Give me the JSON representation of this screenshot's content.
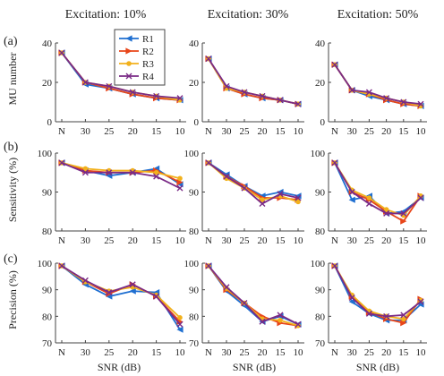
{
  "colors": {
    "R1": "#1f6fd1",
    "R2": "#e8461a",
    "R3": "#f2b11c",
    "R4": "#7a2a86"
  },
  "markers": {
    "R1": "triangle-left",
    "R2": "triangle-right",
    "R3": "circle",
    "R4": "x"
  },
  "column_titles": [
    "Excitation: 10%",
    "Excitation: 30%",
    "Excitation: 50%"
  ],
  "row_labels": [
    "(a)",
    "(b)",
    "(c)"
  ],
  "y_labels": [
    "MU number",
    "Sensitivity (%)",
    "Precision (%)"
  ],
  "x_label": "SNR (dB)",
  "legend": [
    "R1",
    "R2",
    "R3",
    "R4"
  ],
  "chart_data": [
    {
      "type": "line",
      "row": 0,
      "col": 0,
      "title": "Excitation: 10%",
      "xlabel": "",
      "ylabel": "MU number",
      "categories": [
        "N",
        "30",
        "25",
        "20",
        "15",
        "10"
      ],
      "ylim": [
        0,
        40
      ],
      "yticks": [
        0,
        20,
        40
      ],
      "series": [
        {
          "name": "R1",
          "values": [
            35,
            19,
            17,
            14,
            12,
            11
          ]
        },
        {
          "name": "R2",
          "values": [
            35,
            20,
            17,
            14,
            12,
            11
          ]
        },
        {
          "name": "R3",
          "values": [
            35,
            20,
            18,
            15,
            13,
            11
          ]
        },
        {
          "name": "R4",
          "values": [
            35,
            20,
            18,
            15,
            13,
            12
          ]
        }
      ]
    },
    {
      "type": "line",
      "row": 0,
      "col": 1,
      "title": "Excitation: 30%",
      "xlabel": "",
      "ylabel": "",
      "categories": [
        "N",
        "30",
        "25",
        "20",
        "15",
        "10"
      ],
      "ylim": [
        0,
        40
      ],
      "yticks": [
        0,
        20,
        40
      ],
      "series": [
        {
          "name": "R1",
          "values": [
            32,
            17,
            14,
            12,
            11,
            9
          ]
        },
        {
          "name": "R2",
          "values": [
            32,
            17,
            14,
            12,
            11,
            9
          ]
        },
        {
          "name": "R3",
          "values": [
            32,
            17,
            15,
            13,
            11,
            9
          ]
        },
        {
          "name": "R4",
          "values": [
            32,
            18,
            15,
            13,
            11,
            9
          ]
        }
      ]
    },
    {
      "type": "line",
      "row": 0,
      "col": 2,
      "title": "Excitation: 50%",
      "xlabel": "",
      "ylabel": "",
      "categories": [
        "N",
        "30",
        "25",
        "20",
        "15",
        "10"
      ],
      "ylim": [
        0,
        40
      ],
      "yticks": [
        0,
        20,
        40
      ],
      "series": [
        {
          "name": "R1",
          "values": [
            29,
            16,
            13,
            11,
            9,
            8
          ]
        },
        {
          "name": "R2",
          "values": [
            29,
            16,
            14,
            11,
            9,
            8
          ]
        },
        {
          "name": "R3",
          "values": [
            29,
            16,
            14,
            12,
            10,
            8
          ]
        },
        {
          "name": "R4",
          "values": [
            29,
            16,
            15,
            12,
            10,
            9
          ]
        }
      ]
    },
    {
      "type": "line",
      "row": 1,
      "col": 0,
      "title": "",
      "xlabel": "",
      "ylabel": "Sensitivity (%)",
      "categories": [
        "N",
        "30",
        "25",
        "20",
        "15",
        "10"
      ],
      "ylim": [
        80,
        100
      ],
      "yticks": [
        80,
        90,
        100
      ],
      "series": [
        {
          "name": "R1",
          "values": [
            97.5,
            95.5,
            94.2,
            95.0,
            96.0,
            92.0
          ]
        },
        {
          "name": "R2",
          "values": [
            97.5,
            95.5,
            95.0,
            95.0,
            95.5,
            92.5
          ]
        },
        {
          "name": "R3",
          "values": [
            97.5,
            96.0,
            95.5,
            95.5,
            95.0,
            93.5
          ]
        },
        {
          "name": "R4",
          "values": [
            97.5,
            95.0,
            95.0,
            95.0,
            94.0,
            91.0
          ]
        }
      ]
    },
    {
      "type": "line",
      "row": 1,
      "col": 1,
      "title": "",
      "xlabel": "",
      "ylabel": "",
      "categories": [
        "N",
        "30",
        "25",
        "20",
        "15",
        "10"
      ],
      "ylim": [
        80,
        100
      ],
      "yticks": [
        80,
        90,
        100
      ],
      "series": [
        {
          "name": "R1",
          "values": [
            97.5,
            94.5,
            91.5,
            89.0,
            90.0,
            89.0
          ]
        },
        {
          "name": "R2",
          "values": [
            97.5,
            94.0,
            91.5,
            88.5,
            88.5,
            88.0
          ]
        },
        {
          "name": "R3",
          "values": [
            97.5,
            93.5,
            91.0,
            88.0,
            89.0,
            87.5
          ]
        },
        {
          "name": "R4",
          "values": [
            97.5,
            94.0,
            91.0,
            87.0,
            89.5,
            88.5
          ]
        }
      ]
    },
    {
      "type": "line",
      "row": 1,
      "col": 2,
      "title": "",
      "xlabel": "",
      "ylabel": "",
      "categories": [
        "N",
        "30",
        "25",
        "20",
        "15",
        "10"
      ],
      "ylim": [
        80,
        100
      ],
      "yticks": [
        80,
        90,
        100
      ],
      "series": [
        {
          "name": "R1",
          "values": [
            97.5,
            88.0,
            89.0,
            84.5,
            85.0,
            88.5
          ]
        },
        {
          "name": "R2",
          "values": [
            97.5,
            90.0,
            88.0,
            85.0,
            82.5,
            89.0
          ]
        },
        {
          "name": "R3",
          "values": [
            97.5,
            90.5,
            88.5,
            85.5,
            84.0,
            89.0
          ]
        },
        {
          "name": "R4",
          "values": [
            97.5,
            90.0,
            87.0,
            84.5,
            84.5,
            88.5
          ]
        }
      ]
    },
    {
      "type": "line",
      "row": 2,
      "col": 0,
      "title": "",
      "xlabel": "SNR (dB)",
      "ylabel": "Precision (%)",
      "categories": [
        "N",
        "30",
        "25",
        "20",
        "15",
        "10"
      ],
      "ylim": [
        70,
        100
      ],
      "yticks": [
        70,
        80,
        90,
        100
      ],
      "series": [
        {
          "name": "R1",
          "values": [
            99,
            92,
            87.5,
            89.5,
            89,
            75
          ]
        },
        {
          "name": "R2",
          "values": [
            99,
            93,
            88.5,
            92,
            87.5,
            78
          ]
        },
        {
          "name": "R3",
          "values": [
            99,
            93,
            89.5,
            91,
            88,
            79.5
          ]
        },
        {
          "name": "R4",
          "values": [
            99,
            93.5,
            89,
            92,
            87.5,
            77
          ]
        }
      ]
    },
    {
      "type": "line",
      "row": 2,
      "col": 1,
      "title": "",
      "xlabel": "SNR (dB)",
      "ylabel": "",
      "categories": [
        "N",
        "30",
        "25",
        "20",
        "15",
        "10"
      ],
      "ylim": [
        70,
        100
      ],
      "yticks": [
        70,
        80,
        90,
        100
      ],
      "series": [
        {
          "name": "R1",
          "values": [
            99,
            89.5,
            84,
            78,
            80,
            77
          ]
        },
        {
          "name": "R2",
          "values": [
            99,
            90,
            85,
            80,
            77.5,
            76.5
          ]
        },
        {
          "name": "R3",
          "values": [
            99,
            90.5,
            85,
            79,
            78.5,
            76.5
          ]
        },
        {
          "name": "R4",
          "values": [
            99,
            91,
            85,
            78,
            80.5,
            77
          ]
        }
      ]
    },
    {
      "type": "line",
      "row": 2,
      "col": 2,
      "title": "",
      "xlabel": "SNR (dB)",
      "ylabel": "",
      "categories": [
        "N",
        "30",
        "25",
        "20",
        "15",
        "10"
      ],
      "ylim": [
        70,
        100
      ],
      "yticks": [
        70,
        80,
        90,
        100
      ],
      "series": [
        {
          "name": "R1",
          "values": [
            99,
            85.5,
            81,
            78.5,
            78.5,
            84.5
          ]
        },
        {
          "name": "R2",
          "values": [
            99,
            87.5,
            81.5,
            79,
            77.5,
            86.5
          ]
        },
        {
          "name": "R3",
          "values": [
            99,
            88,
            82,
            80,
            79,
            86
          ]
        },
        {
          "name": "R4",
          "values": [
            99,
            87,
            81,
            80,
            80.5,
            85.5
          ]
        }
      ]
    }
  ]
}
